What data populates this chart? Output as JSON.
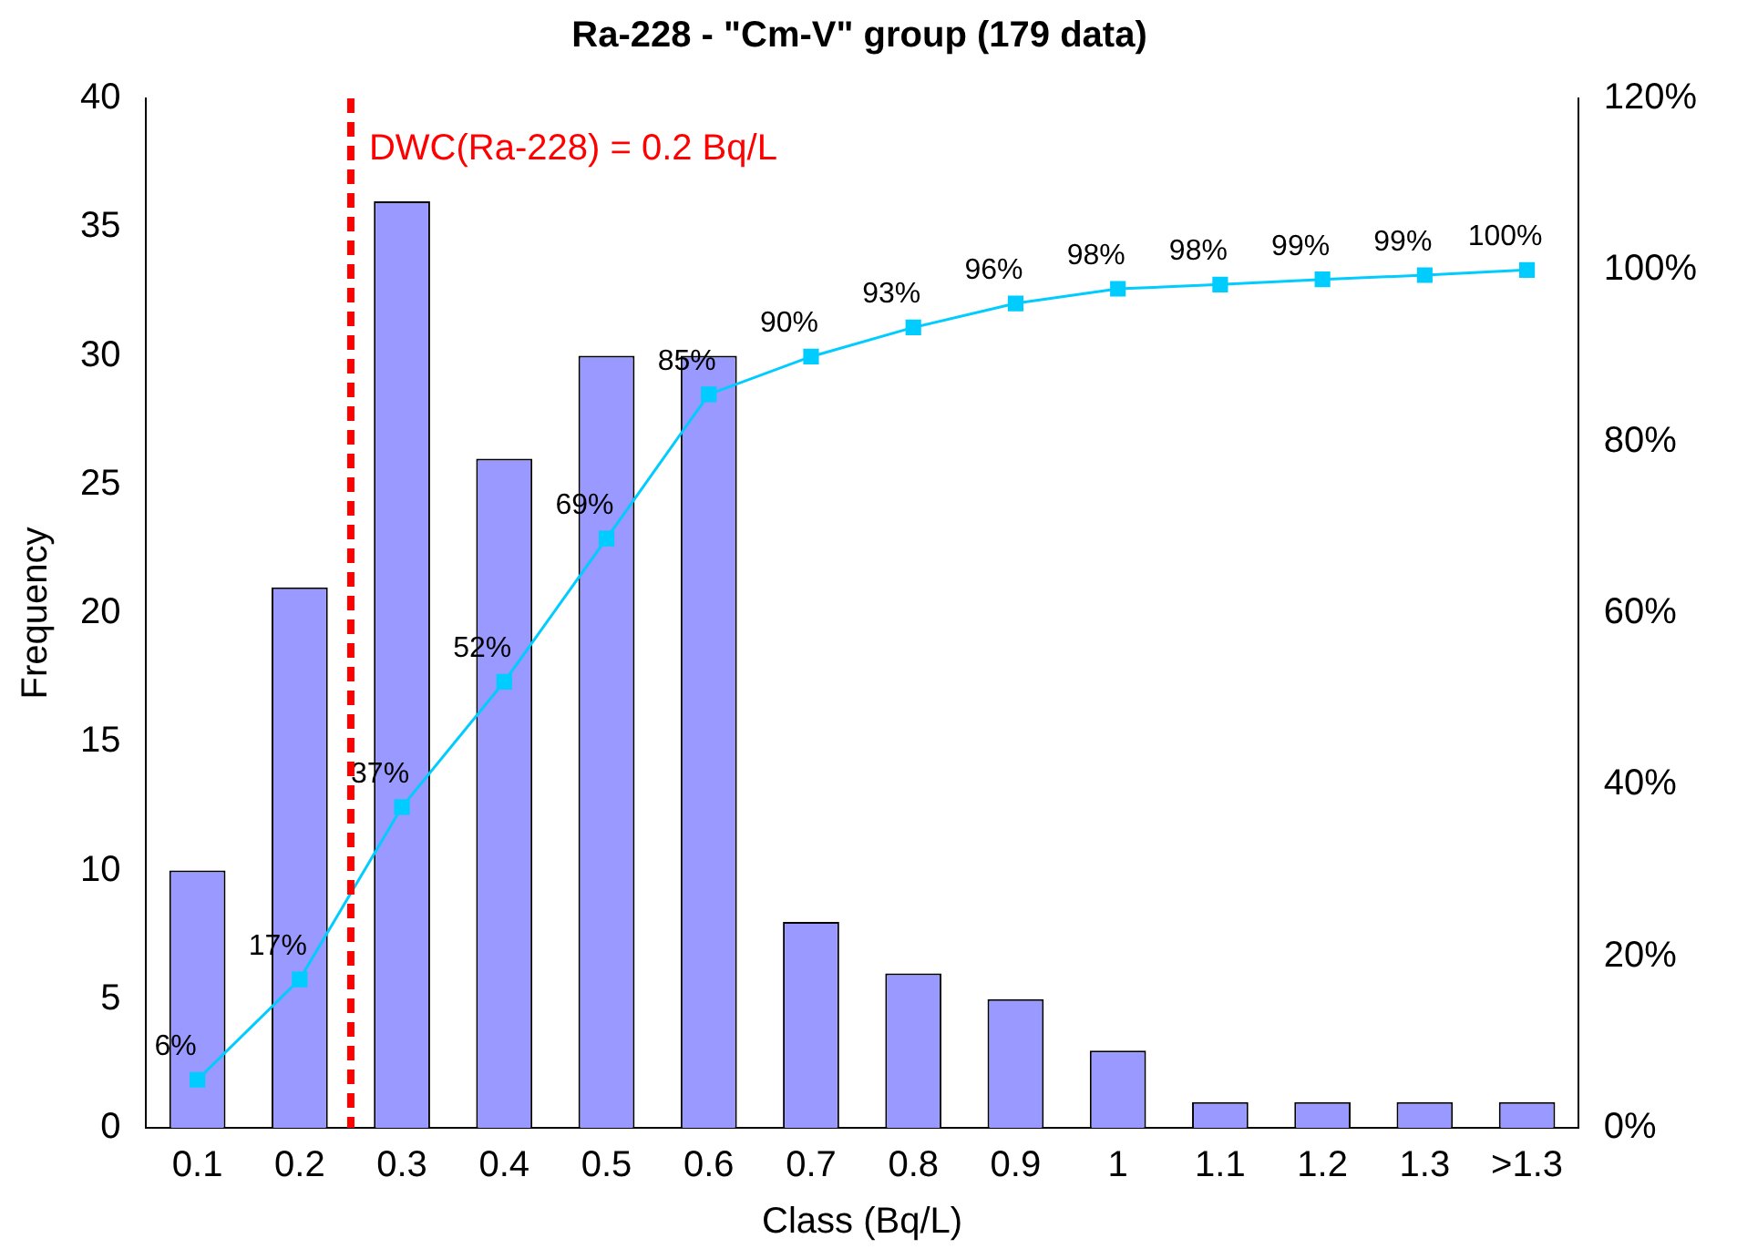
{
  "chart_data": {
    "type": "bar",
    "title": "Ra-228 - \"Cm-V\" group (179 data)",
    "xlabel": "Class (Bq/L)",
    "ylabel": "Frequency",
    "categories": [
      "0.1",
      "0.2",
      "0.3",
      "0.4",
      "0.5",
      "0.6",
      "0.7",
      "0.8",
      "0.9",
      "1",
      "1.1",
      "1.2",
      "1.3",
      ">1.3"
    ],
    "series": [
      {
        "color": "#9999ff",
        "values": [
          10,
          21,
          36,
          26,
          30,
          30,
          8,
          6,
          5,
          3,
          1,
          1,
          1,
          1
        ]
      },
      {
        "type": "line",
        "axis": "y2",
        "color": "#00ccff",
        "marker": "square",
        "values": [
          5.6,
          17.3,
          37.4,
          52.0,
          68.7,
          85.5,
          89.9,
          93.3,
          96.1,
          97.8,
          98.3,
          98.9,
          99.4,
          100
        ],
        "value_labels": [
          "6%",
          "17%",
          "37%",
          "52%",
          "69%",
          "85%",
          "90%",
          "93%",
          "96%",
          "98%",
          "98%",
          "99%",
          "99%",
          "100%"
        ]
      }
    ],
    "ylim": [
      0,
      40
    ],
    "yticks": [
      0,
      5,
      10,
      15,
      20,
      25,
      30,
      35,
      40
    ],
    "y2lim": [
      0,
      120
    ],
    "y2ticks": [
      {
        "value": 0,
        "label": "0%"
      },
      {
        "value": 20,
        "label": "20%"
      },
      {
        "value": 40,
        "label": "40%"
      },
      {
        "value": 60,
        "label": "60%"
      },
      {
        "value": 80,
        "label": "80%"
      },
      {
        "value": 100,
        "label": "100%"
      },
      {
        "value": 120,
        "label": "120%"
      }
    ],
    "ref_lines": [
      {
        "axis": "x",
        "value": "0.2",
        "label": "DWC(Ra-228) = 0.2 Bq/L",
        "color": "#ff0000",
        "line_style": "dashed"
      }
    ],
    "grid": false,
    "legend": false
  }
}
